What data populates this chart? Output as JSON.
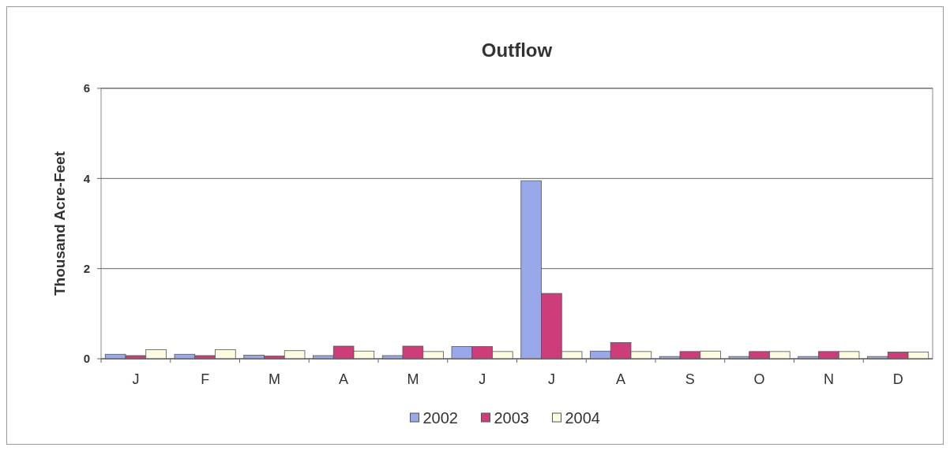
{
  "chart_data": {
    "type": "bar",
    "title": "Outflow",
    "ylabel": "Thousand Acre-Feet",
    "categories": [
      "J",
      "F",
      "M",
      "A",
      "M",
      "J",
      "J",
      "A",
      "S",
      "O",
      "N",
      "D"
    ],
    "series": [
      {
        "name": "2002",
        "color": "#99a8e8",
        "values": [
          0.1,
          0.1,
          0.08,
          0.07,
          0.07,
          0.27,
          3.95,
          0.17,
          0.05,
          0.05,
          0.05,
          0.05
        ]
      },
      {
        "name": "2003",
        "color": "#cc3d7a",
        "values": [
          0.07,
          0.07,
          0.06,
          0.28,
          0.28,
          0.27,
          1.45,
          0.36,
          0.16,
          0.16,
          0.16,
          0.15
        ]
      },
      {
        "name": "2004",
        "color": "#fdfbe0",
        "values": [
          0.2,
          0.2,
          0.18,
          0.17,
          0.16,
          0.16,
          0.16,
          0.16,
          0.17,
          0.16,
          0.16,
          0.15
        ]
      }
    ],
    "ylim": [
      0,
      6
    ],
    "yticks": [
      0,
      2,
      4,
      6
    ],
    "grid": "y",
    "legend": "bottom"
  }
}
